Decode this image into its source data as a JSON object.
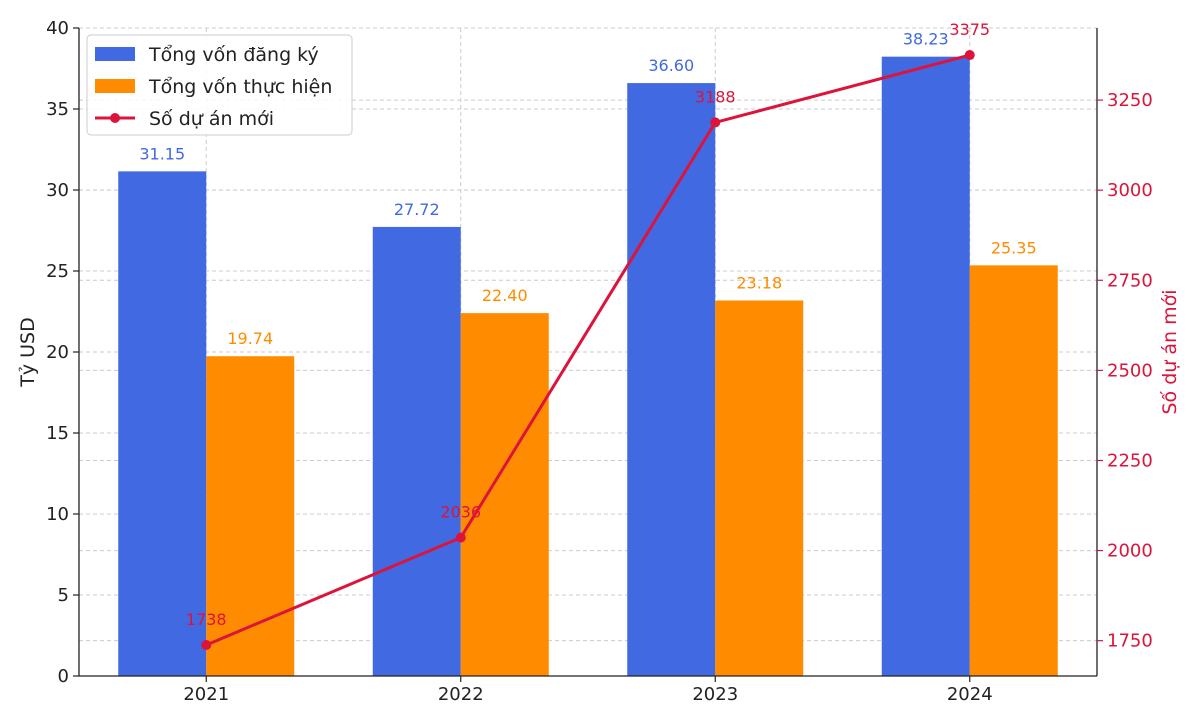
{
  "chart_data": {
    "type": "bar",
    "categories": [
      "2021",
      "2022",
      "2023",
      "2024"
    ],
    "series": [
      {
        "name": "Tổng vốn đăng ký",
        "type": "bar",
        "axis": "left",
        "values": [
          31.15,
          27.72,
          36.6,
          38.23
        ],
        "labels": [
          "31.15",
          "27.72",
          "36.60",
          "38.23"
        ],
        "color": "#4169E1"
      },
      {
        "name": "Tổng vốn thực hiện",
        "type": "bar",
        "axis": "left",
        "values": [
          19.74,
          22.4,
          23.18,
          25.35
        ],
        "labels": [
          "19.74",
          "22.40",
          "23.18",
          "25.35"
        ],
        "color": "#FF8C00"
      },
      {
        "name": "Số dự án mới",
        "type": "line",
        "axis": "right",
        "values": [
          1738,
          2036,
          3188,
          3375
        ],
        "labels": [
          "1738",
          "2036",
          "3188",
          "3375"
        ],
        "color": "#DC143C"
      }
    ],
    "ylabel": "Tỷ USD",
    "ylim": [
      0,
      40
    ],
    "yticks": [
      0,
      5,
      10,
      15,
      20,
      25,
      30,
      35,
      40
    ],
    "y2label": "Số dự án mới",
    "y2lim": [
      1652,
      3450
    ],
    "y2ticks": [
      1750,
      2000,
      2250,
      2500,
      2750,
      3000,
      3250
    ],
    "grid": true,
    "legend_position": "top-left"
  }
}
